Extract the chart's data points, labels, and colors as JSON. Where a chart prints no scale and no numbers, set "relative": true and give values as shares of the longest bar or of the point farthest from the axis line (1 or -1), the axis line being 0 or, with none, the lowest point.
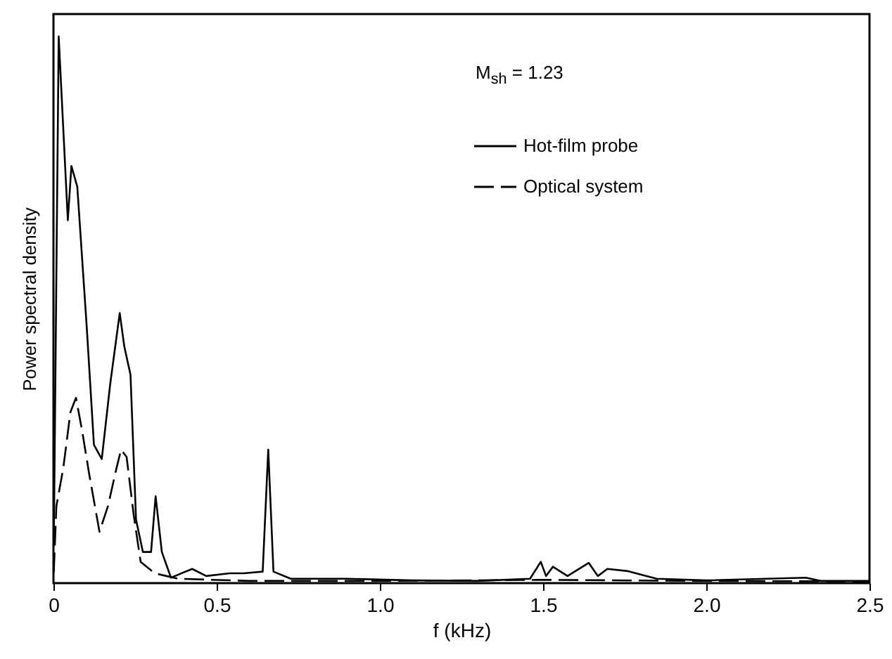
{
  "chart_data": {
    "type": "line",
    "relative": true,
    "xlabel": "f (kHz)",
    "ylabel": "Power spectral density",
    "xlim": [
      0,
      2.5
    ],
    "xticks": [
      0,
      0.5,
      {
        "value": 1,
        "label": "1.0"
      },
      1.5,
      {
        "value": 2,
        "label": "2.0"
      },
      2.5
    ],
    "legend": "top right",
    "grid": false,
    "marker": "none",
    "annotations": [
      "M$_{sh}$ = 1.23"
    ],
    "series": [
      {
        "name": "Hot-film probe",
        "color": "#000000",
        "line_style": "solid",
        "x": [
          0.001,
          0.016,
          0.044,
          0.055,
          0.073,
          0.102,
          0.124,
          0.148,
          0.174,
          0.203,
          0.217,
          0.236,
          0.253,
          0.274,
          0.299,
          0.313,
          0.332,
          0.36,
          0.425,
          0.468,
          0.54,
          0.583,
          0.641,
          0.658,
          0.674,
          0.727,
          0.9,
          1.1,
          1.3,
          1.46,
          1.493,
          1.509,
          1.53,
          1.575,
          1.64,
          1.668,
          1.697,
          1.76,
          1.848,
          2.0,
          2.305,
          2.35,
          2.5
        ],
        "values": [
          0.07,
          1.0,
          0.664,
          0.763,
          0.725,
          0.468,
          0.253,
          0.227,
          0.365,
          0.494,
          0.433,
          0.381,
          0.116,
          0.057,
          0.057,
          0.159,
          0.057,
          0.01,
          0.026,
          0.013,
          0.018,
          0.018,
          0.021,
          0.244,
          0.021,
          0.008,
          0.008,
          0.005,
          0.004,
          0.008,
          0.039,
          0.013,
          0.03,
          0.013,
          0.037,
          0.013,
          0.026,
          0.022,
          0.008,
          0.005,
          0.01,
          0.004,
          0.004
        ]
      },
      {
        "name": "Optical system",
        "color": "#000000",
        "line_style": "dashed",
        "x": [
          0.001,
          0.009,
          0.03,
          0.052,
          0.069,
          0.088,
          0.109,
          0.141,
          0.167,
          0.193,
          0.207,
          0.224,
          0.246,
          0.267,
          0.31,
          0.382,
          0.6,
          1.0,
          1.5,
          2.0,
          2.5
        ],
        "values": [
          0.02,
          0.141,
          0.21,
          0.313,
          0.339,
          0.278,
          0.201,
          0.094,
          0.141,
          0.21,
          0.244,
          0.231,
          0.124,
          0.039,
          0.018,
          0.008,
          0.004,
          0.004,
          0.006,
          0.004,
          0.003
        ]
      }
    ]
  }
}
